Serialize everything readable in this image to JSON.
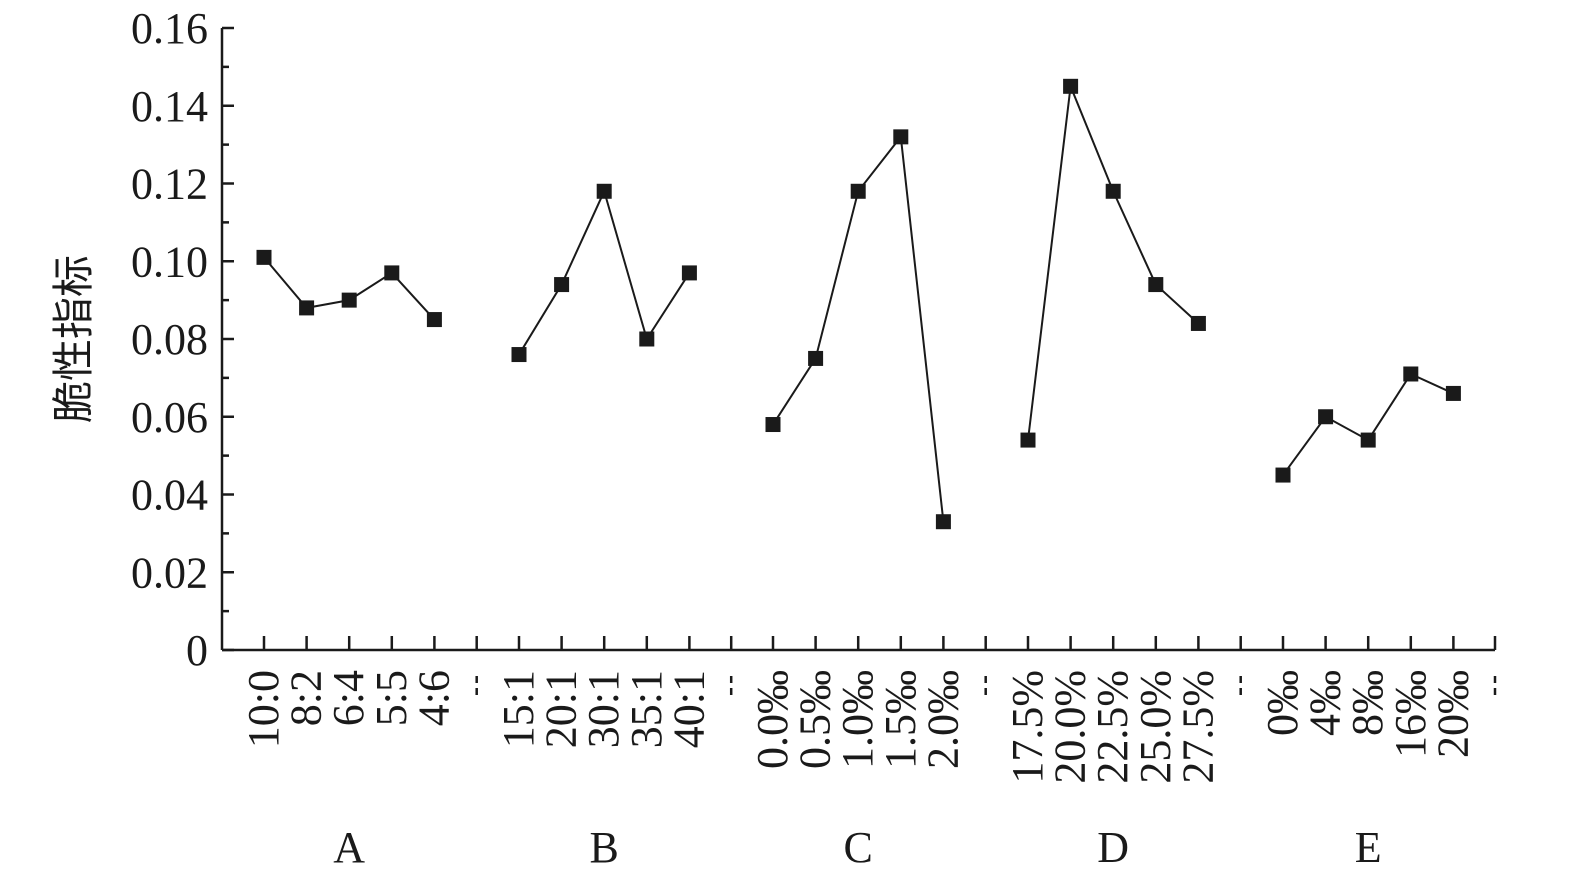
{
  "chart_data": {
    "type": "line",
    "ylabel": "脆性指标",
    "xlabel": "",
    "ylim": [
      0,
      0.16
    ],
    "yticks": [
      "0",
      "0.02",
      "0.04",
      "0.06",
      "0.08",
      "0.10",
      "0.12",
      "0.14",
      "0.16"
    ],
    "y_minor_step": 0.01,
    "grid": false,
    "marker": "square",
    "colors": {
      "line": "#1a1a1a",
      "marker": "#1a1a1a"
    },
    "groups": [
      {
        "name": "A",
        "categories": [
          "10:0",
          "8:2",
          "6:4",
          "5:5",
          "4:6"
        ],
        "values": [
          0.101,
          0.088,
          0.09,
          0.097,
          0.085
        ]
      },
      {
        "name": "B",
        "categories": [
          "15:1",
          "20:1",
          "30:1",
          "35:1",
          "40:1"
        ],
        "values": [
          0.076,
          0.094,
          0.118,
          0.08,
          0.097
        ]
      },
      {
        "name": "C",
        "categories": [
          "0.0‰",
          "0.5‰",
          "1.0‰",
          "1.5‰",
          "2.0‰"
        ],
        "values": [
          0.058,
          0.075,
          0.118,
          0.132,
          0.033
        ]
      },
      {
        "name": "D",
        "categories": [
          "17.5%",
          "20.0%",
          "22.5%",
          "25.0%",
          "27.5%"
        ],
        "values": [
          0.054,
          0.145,
          0.118,
          0.094,
          0.084
        ]
      },
      {
        "name": "E",
        "categories": [
          "0‰",
          "4‰",
          "8‰",
          "16‰",
          "20‰"
        ],
        "values": [
          0.045,
          0.06,
          0.054,
          0.071,
          0.066
        ]
      }
    ]
  }
}
